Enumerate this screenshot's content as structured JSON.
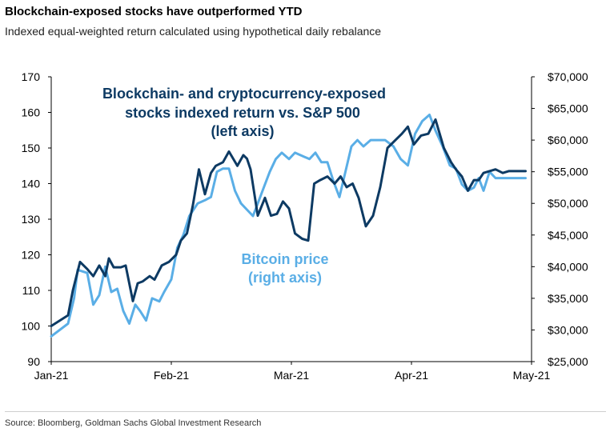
{
  "title": "Blockchain-exposed stocks have outperformed YTD",
  "subtitle": "Indexed equal-weighted return calculated using hypothetical daily rebalance",
  "source": "Source: Bloomberg, Goldman Sachs Global Investment Research",
  "colors": {
    "dark": "#0d3a63",
    "light": "#5aaee6"
  },
  "annotations": {
    "dark_line1": "Blockchain- and cryptocurrency-exposed",
    "dark_line2": "stocks indexed return vs. S&P 500",
    "dark_line3": "(left axis)",
    "light_line1": "Bitcoin price",
    "light_line2": "(right axis)"
  },
  "chart_data": {
    "type": "line",
    "title": "Blockchain-exposed stocks have outperformed YTD",
    "x_tick_labels": [
      "Jan-21",
      "Feb-21",
      "Mar-21",
      "Apr-21",
      "May-21"
    ],
    "xlim": [
      0,
      4
    ],
    "left_axis": {
      "ylim": [
        90,
        170
      ],
      "ticks": [
        90,
        100,
        110,
        120,
        130,
        140,
        150,
        160,
        170
      ]
    },
    "right_axis": {
      "ylim": [
        25000,
        70000
      ],
      "ticks": [
        "$25,000",
        "$30,000",
        "$35,000",
        "$40,000",
        "$45,000",
        "$50,000",
        "$55,000",
        "$60,000",
        "$65,000",
        "$70,000"
      ]
    },
    "series": [
      {
        "name": "Blockchain- and cryptocurrency-exposed stocks indexed return vs. S&P 500",
        "axis": "left",
        "color": "#0d3a63",
        "x": [
          0,
          0.14,
          0.18,
          0.24,
          0.3,
          0.35,
          0.4,
          0.45,
          0.48,
          0.52,
          0.58,
          0.62,
          0.68,
          0.72,
          0.76,
          0.82,
          0.86,
          0.92,
          0.98,
          1.04,
          1.08,
          1.13,
          1.18,
          1.23,
          1.28,
          1.33,
          1.37,
          1.43,
          1.48,
          1.55,
          1.6,
          1.63,
          1.66,
          1.72,
          1.78,
          1.83,
          1.88,
          1.93,
          1.98,
          2.03,
          2.09,
          2.14,
          2.19,
          2.24,
          2.3,
          2.36,
          2.41,
          2.46,
          2.51,
          2.56,
          2.62,
          2.68,
          2.74,
          2.8,
          2.86,
          2.92,
          2.97,
          3.02,
          3.08,
          3.14,
          3.2,
          3.27,
          3.33,
          3.37,
          3.42,
          3.47,
          3.52,
          3.56,
          3.6,
          3.65,
          3.7,
          3.76,
          3.81,
          3.86,
          3.91,
          3.95
        ],
        "y": [
          100,
          103,
          110,
          118,
          116,
          114,
          117,
          114,
          119,
          116.5,
          116.5,
          117,
          107,
          112,
          112.5,
          114,
          113,
          117,
          118,
          120,
          124,
          126,
          134,
          144,
          137,
          143,
          145,
          146,
          149,
          145,
          148,
          147,
          144,
          131,
          136,
          131,
          131.5,
          135,
          133,
          126,
          124.5,
          124,
          140,
          141,
          142,
          140,
          142,
          139,
          140,
          136,
          128,
          131,
          139,
          150,
          152,
          154,
          156,
          151,
          153.5,
          154,
          158,
          150,
          146,
          144,
          142,
          138,
          141,
          141,
          143,
          143.5,
          144,
          143,
          143.5,
          143.5,
          143.5,
          143.5
        ],
        "_note": "dark line values"
      },
      {
        "name": "Bitcoin price",
        "axis": "right",
        "color": "#5aaee6",
        "x": [
          0,
          0.14,
          0.19,
          0.22,
          0.3,
          0.35,
          0.4,
          0.45,
          0.5,
          0.55,
          0.6,
          0.65,
          0.7,
          0.74,
          0.79,
          0.84,
          0.9,
          0.94,
          1.0,
          1.05,
          1.1,
          1.15,
          1.22,
          1.28,
          1.33,
          1.38,
          1.43,
          1.48,
          1.53,
          1.58,
          1.63,
          1.68,
          1.73,
          1.77,
          1.82,
          1.87,
          1.92,
          1.98,
          2.03,
          2.09,
          2.15,
          2.2,
          2.25,
          2.3,
          2.35,
          2.4,
          2.45,
          2.5,
          2.55,
          2.6,
          2.66,
          2.72,
          2.78,
          2.85,
          2.91,
          2.97,
          3.03,
          3.09,
          3.15,
          3.2,
          3.26,
          3.32,
          3.37,
          3.42,
          3.47,
          3.52,
          3.56,
          3.6,
          3.65,
          3.7,
          3.74,
          3.79,
          3.84,
          3.9,
          3.95
        ],
        "y": [
          29000,
          31000,
          35000,
          39500,
          39000,
          34000,
          35500,
          40000,
          36000,
          36500,
          33000,
          31000,
          34000,
          33000,
          31500,
          35000,
          34500,
          36000,
          38000,
          43000,
          45000,
          48000,
          50000,
          50500,
          51000,
          55000,
          55500,
          55500,
          52000,
          50000,
          49000,
          48000,
          50500,
          52500,
          55000,
          57000,
          58000,
          57000,
          58000,
          57500,
          57000,
          58000,
          56500,
          56500,
          53500,
          51000,
          55000,
          59000,
          60000,
          59000,
          60000,
          60000,
          60000,
          59000,
          57000,
          56000,
          61000,
          63000,
          64000,
          61500,
          59000,
          56000,
          55500,
          53000,
          52000,
          52500,
          54000,
          52000,
          55000,
          54000,
          54000,
          54000,
          54000,
          54000,
          54000
        ]
      }
    ]
  }
}
